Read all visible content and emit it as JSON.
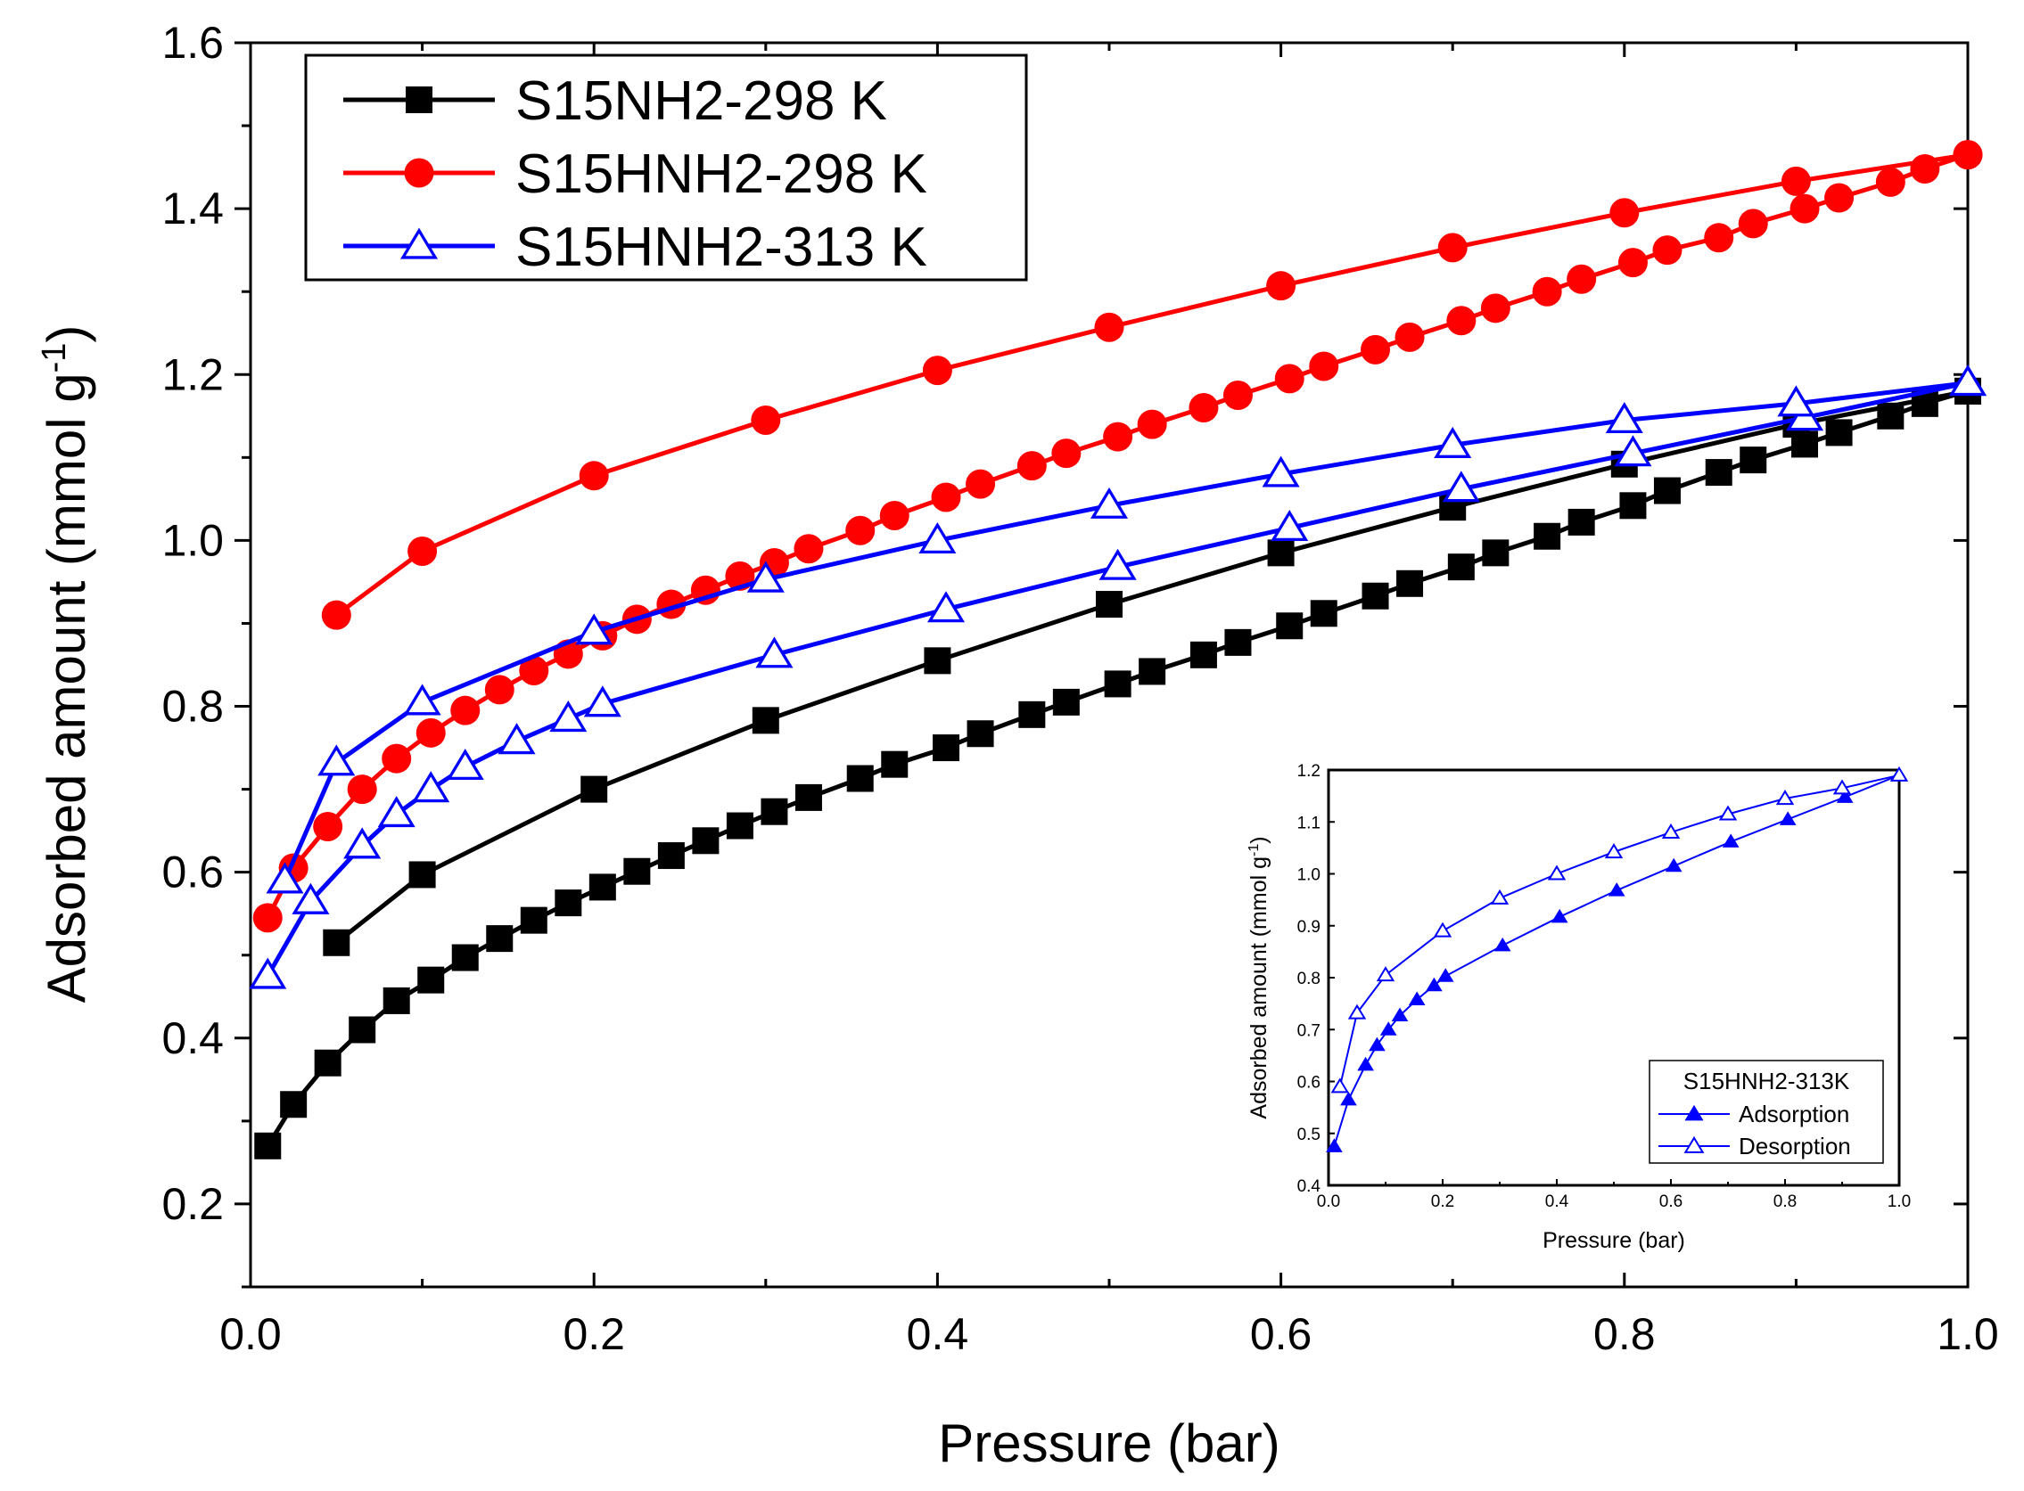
{
  "chart_data": [
    {
      "type": "line",
      "title": "",
      "xlabel": "Pressure (bar)",
      "ylabel": {
        "main": "Adsorbed amount (mmol g",
        "sup": "-1",
        "close": ")"
      },
      "xlim": [
        0.0,
        1.0
      ],
      "ylim": [
        0.1,
        1.6
      ],
      "xticks": [
        "0.0",
        "0.2",
        "0.4",
        "0.6",
        "0.8",
        "1.0"
      ],
      "yticks": [
        "0.2",
        "0.4",
        "0.6",
        "0.8",
        "1.0",
        "1.2",
        "1.4",
        "1.6"
      ],
      "legend_position": "top-left",
      "series": [
        {
          "name": "S15NH2-298 K",
          "color": "#000000",
          "marker": "square",
          "adsorption": {
            "x": [
              0.01,
              0.025,
              0.045,
              0.065,
              0.085,
              0.105,
              0.125,
              0.145,
              0.165,
              0.185,
              0.205,
              0.225,
              0.245,
              0.265,
              0.285,
              0.305,
              0.325,
              0.355,
              0.375,
              0.405,
              0.425,
              0.455,
              0.475,
              0.505,
              0.525,
              0.555,
              0.575,
              0.605,
              0.625,
              0.655,
              0.675,
              0.705,
              0.725,
              0.755,
              0.775,
              0.805,
              0.825,
              0.855,
              0.875,
              0.905,
              0.925,
              0.955,
              0.975,
              1.0
            ],
            "y": [
              0.27,
              0.32,
              0.37,
              0.41,
              0.445,
              0.47,
              0.497,
              0.52,
              0.542,
              0.563,
              0.582,
              0.601,
              0.62,
              0.638,
              0.656,
              0.673,
              0.69,
              0.713,
              0.73,
              0.75,
              0.767,
              0.79,
              0.805,
              0.827,
              0.842,
              0.862,
              0.877,
              0.897,
              0.912,
              0.933,
              0.948,
              0.968,
              0.985,
              1.005,
              1.022,
              1.042,
              1.06,
              1.082,
              1.097,
              1.116,
              1.13,
              1.15,
              1.165,
              1.18
            ]
          },
          "desorption": {
            "x": [
              0.05,
              0.1,
              0.2,
              0.3,
              0.4,
              0.5,
              0.6,
              0.7,
              0.8,
              0.9,
              1.0
            ],
            "y": [
              0.515,
              0.597,
              0.7,
              0.783,
              0.855,
              0.923,
              0.985,
              1.04,
              1.092,
              1.14,
              1.18
            ]
          }
        },
        {
          "name": "S15HNH2-298 K",
          "color": "#ff0000",
          "marker": "circle",
          "adsorption": {
            "x": [
              0.01,
              0.025,
              0.045,
              0.065,
              0.085,
              0.105,
              0.125,
              0.145,
              0.165,
              0.185,
              0.205,
              0.225,
              0.245,
              0.265,
              0.285,
              0.305,
              0.325,
              0.355,
              0.375,
              0.405,
              0.425,
              0.455,
              0.475,
              0.505,
              0.525,
              0.555,
              0.575,
              0.605,
              0.625,
              0.655,
              0.675,
              0.705,
              0.725,
              0.755,
              0.775,
              0.805,
              0.825,
              0.855,
              0.875,
              0.905,
              0.925,
              0.955,
              0.975,
              1.0
            ],
            "y": [
              0.545,
              0.605,
              0.655,
              0.7,
              0.737,
              0.768,
              0.795,
              0.82,
              0.843,
              0.863,
              0.885,
              0.905,
              0.923,
              0.94,
              0.957,
              0.973,
              0.99,
              1.012,
              1.03,
              1.052,
              1.068,
              1.09,
              1.105,
              1.125,
              1.14,
              1.16,
              1.175,
              1.195,
              1.21,
              1.23,
              1.245,
              1.265,
              1.28,
              1.3,
              1.315,
              1.335,
              1.35,
              1.365,
              1.382,
              1.4,
              1.413,
              1.432,
              1.448,
              1.465
            ]
          },
          "desorption": {
            "x": [
              0.05,
              0.1,
              0.2,
              0.3,
              0.4,
              0.5,
              0.6,
              0.7,
              0.8,
              0.9,
              1.0
            ],
            "y": [
              0.91,
              0.987,
              1.078,
              1.145,
              1.205,
              1.257,
              1.307,
              1.353,
              1.395,
              1.433,
              1.465
            ]
          }
        },
        {
          "name": "S15HNH2-313 K",
          "color": "#0000ff",
          "marker": "triangle-open",
          "adsorption": {
            "x": [
              0.01,
              0.035,
              0.065,
              0.085,
              0.105,
              0.125,
              0.155,
              0.185,
              0.205,
              0.305,
              0.405,
              0.505,
              0.605,
              0.705,
              0.805,
              0.905,
              1.0
            ],
            "y": [
              0.475,
              0.565,
              0.632,
              0.67,
              0.7,
              0.727,
              0.758,
              0.785,
              0.803,
              0.862,
              0.917,
              0.968,
              1.015,
              1.062,
              1.105,
              1.148,
              1.19
            ]
          },
          "desorption": {
            "x": [
              0.02,
              0.05,
              0.1,
              0.2,
              0.3,
              0.4,
              0.5,
              0.6,
              0.7,
              0.8,
              0.9,
              1.0
            ],
            "y": [
              0.59,
              0.732,
              0.805,
              0.89,
              0.953,
              1.0,
              1.042,
              1.08,
              1.115,
              1.145,
              1.165,
              1.19
            ]
          }
        }
      ]
    },
    {
      "type": "line",
      "title": "S15HNH2-313K",
      "xlabel": "Pressure (bar)",
      "ylabel": {
        "main": "Adsorbed amount (mmol g",
        "sup": "-1",
        "close": ")"
      },
      "xlim": [
        0.0,
        1.0
      ],
      "ylim": [
        0.4,
        1.2
      ],
      "xticks": [
        "0.0",
        "0.2",
        "0.4",
        "0.6",
        "0.8",
        "1.0"
      ],
      "yticks": [
        "0.4",
        "0.5",
        "0.6",
        "0.7",
        "0.8",
        "0.9",
        "1.0",
        "1.1",
        "1.2"
      ],
      "legend_position": "bottom-right",
      "series": [
        {
          "name": "Adsorption",
          "color": "#0000ff",
          "marker": "triangle-filled",
          "x": [
            0.01,
            0.035,
            0.065,
            0.085,
            0.105,
            0.125,
            0.155,
            0.185,
            0.205,
            0.305,
            0.405,
            0.505,
            0.605,
            0.705,
            0.805,
            0.905,
            1.0
          ],
          "y": [
            0.475,
            0.565,
            0.632,
            0.67,
            0.7,
            0.727,
            0.758,
            0.785,
            0.803,
            0.862,
            0.917,
            0.968,
            1.015,
            1.062,
            1.105,
            1.148,
            1.19
          ]
        },
        {
          "name": "Desorption",
          "color": "#0000ff",
          "marker": "triangle-open",
          "x": [
            0.02,
            0.05,
            0.1,
            0.2,
            0.3,
            0.4,
            0.5,
            0.6,
            0.7,
            0.8,
            0.9,
            1.0
          ],
          "y": [
            0.59,
            0.732,
            0.805,
            0.89,
            0.953,
            1.0,
            1.042,
            1.08,
            1.115,
            1.145,
            1.165,
            1.19
          ]
        }
      ]
    }
  ]
}
